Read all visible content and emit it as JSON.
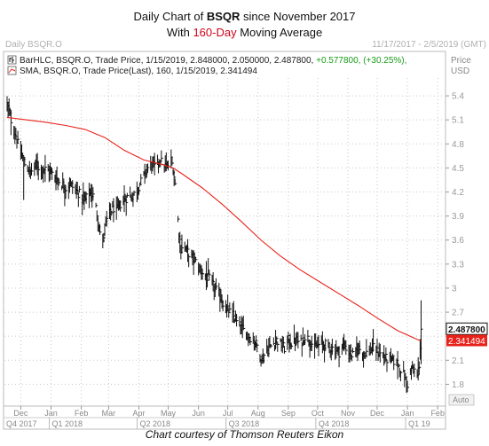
{
  "title": {
    "line1_pre": "Daily Chart of ",
    "line1_ticker": "BSQR",
    "line1_post": " since November 2017",
    "line2_pre": "With ",
    "line2_hi": "160-Day",
    "line2_post": " Moving Average"
  },
  "header": {
    "left": "Daily BSQR.O",
    "right": "11/17/2017 - 2/5/2019 (GMT)",
    "legend1_prefix": "BarHLC, BSQR.O, Trade Price, 1/15/2019, 2.848000, 2.050000, 2.487800,",
    "legend1_change": " +0.577800, (+30.25%),",
    "legend2": "SMA, BSQR.O, Trade Price(Last),  160,  1/15/2019, 2.341494",
    "price_label": "Price",
    "currency_label": "USD",
    "auto_label": "Auto"
  },
  "caption": "Chart courtesy of Thomson Reuters Eikon",
  "colors": {
    "bars": "#111111",
    "sma": "#e8231b",
    "last_price_box": "#111111",
    "sma_box": "#e8231b",
    "change_text": "#1a9b1a",
    "grid": "#c8c8c8"
  },
  "chart_data": {
    "type": "line",
    "title": "Daily Chart of BSQR since November 2017",
    "subtitle": "With 160-Day Moving Average",
    "ylim": [
      1.55,
      5.6
    ],
    "y_ticks": [
      "5.4",
      "5.1",
      "4.8",
      "4.5",
      "4.2",
      "3.9",
      "3.6",
      "3.3",
      "3",
      "2.7",
      "2.4",
      "2.1",
      "1.8"
    ],
    "y_tick_values": [
      5.4,
      5.1,
      4.8,
      4.5,
      4.2,
      3.9,
      3.6,
      3.3,
      3.0,
      2.7,
      2.4,
      2.1,
      1.8
    ],
    "x_months": [
      "Dec",
      "Jan",
      "Feb",
      "Mar",
      "Apr",
      "May",
      "Jun",
      "Jul",
      "Aug",
      "Sep",
      "Oct",
      "Nov",
      "Dec",
      "Jan",
      "Feb"
    ],
    "x_month_days": [
      14,
      45,
      76,
      104,
      135,
      165,
      196,
      226,
      257,
      288,
      318,
      349,
      379,
      410,
      441
    ],
    "quarters": [
      "Q4 2017",
      "Q1 2018",
      "Q2 2018",
      "Q3 2018",
      "Q4 2018",
      "Q1 19"
    ],
    "quarter_start_days": [
      0,
      45,
      135,
      226,
      318,
      410
    ],
    "last_price": "2.487800",
    "sma_last": "2.341494",
    "grid": true,
    "series": [
      {
        "name": "BarHLC, BSQR.O, Trade Price",
        "kind": "hlc",
        "anchors_day": [
          0,
          3,
          6,
          9,
          12,
          15,
          18,
          21,
          24,
          27,
          30,
          33,
          36,
          40,
          44,
          48,
          52,
          56,
          60,
          64,
          68,
          72,
          76,
          80,
          84,
          88,
          91,
          94,
          96,
          98,
          100,
          102,
          104,
          106,
          109,
          112,
          116,
          120,
          124,
          128,
          132,
          136,
          140,
          144,
          148,
          152,
          156,
          160,
          164,
          168,
          170,
          172,
          174,
          176,
          178,
          180,
          182,
          185,
          188,
          192,
          196,
          200,
          204,
          208,
          212,
          216,
          220,
          224,
          228,
          232,
          236,
          240,
          244,
          248,
          252,
          255,
          258,
          261,
          264,
          268,
          272,
          276,
          280,
          284,
          288,
          292,
          296,
          300,
          305,
          310,
          315,
          320,
          325,
          330,
          335,
          340,
          345,
          350,
          355,
          360,
          365,
          370,
          375,
          380,
          385,
          390,
          395,
          400,
          405,
          410,
          412,
          414,
          416,
          418,
          420,
          422,
          424
        ],
        "anchors_close": [
          5.3,
          5.15,
          5.0,
          4.9,
          4.75,
          4.65,
          4.55,
          4.5,
          4.45,
          4.5,
          4.55,
          4.5,
          4.5,
          4.48,
          4.45,
          4.4,
          4.35,
          4.3,
          4.25,
          4.3,
          4.25,
          4.2,
          4.15,
          4.1,
          4.2,
          4.15,
          4.0,
          3.8,
          3.6,
          3.55,
          3.75,
          3.85,
          3.9,
          3.95,
          4.0,
          3.95,
          4.05,
          4.1,
          4.15,
          4.15,
          4.2,
          4.3,
          4.4,
          4.5,
          4.55,
          4.5,
          4.6,
          4.55,
          4.5,
          4.6,
          4.5,
          4.3,
          4.0,
          3.7,
          3.5,
          3.55,
          3.5,
          3.45,
          3.4,
          3.35,
          3.25,
          3.2,
          3.15,
          3.1,
          3.0,
          2.95,
          2.85,
          2.75,
          2.7,
          2.65,
          2.55,
          2.5,
          2.45,
          2.4,
          2.35,
          2.3,
          2.25,
          2.1,
          2.2,
          2.25,
          2.3,
          2.35,
          2.3,
          2.25,
          2.35,
          2.3,
          2.35,
          2.3,
          2.4,
          2.35,
          2.25,
          2.3,
          2.3,
          2.25,
          2.25,
          2.2,
          2.3,
          2.2,
          2.15,
          2.25,
          2.2,
          2.2,
          2.25,
          2.2,
          2.15,
          2.1,
          2.1,
          2.05,
          1.95,
          1.8,
          1.9,
          2.0,
          1.95,
          2.0,
          1.9,
          2.05,
          2.49
        ]
      },
      {
        "name": "SMA, BSQR.O, Trade Price(Last), 160",
        "kind": "line",
        "x_day": [
          0,
          20,
          40,
          60,
          80,
          100,
          120,
          140,
          160,
          170,
          180,
          200,
          220,
          240,
          260,
          280,
          300,
          320,
          340,
          360,
          380,
          400,
          420,
          424
        ],
        "y": [
          5.13,
          5.1,
          5.07,
          5.03,
          4.98,
          4.88,
          4.72,
          4.6,
          4.54,
          4.5,
          4.42,
          4.25,
          4.05,
          3.83,
          3.6,
          3.4,
          3.23,
          3.08,
          2.93,
          2.78,
          2.62,
          2.47,
          2.36,
          2.34
        ]
      }
    ]
  }
}
